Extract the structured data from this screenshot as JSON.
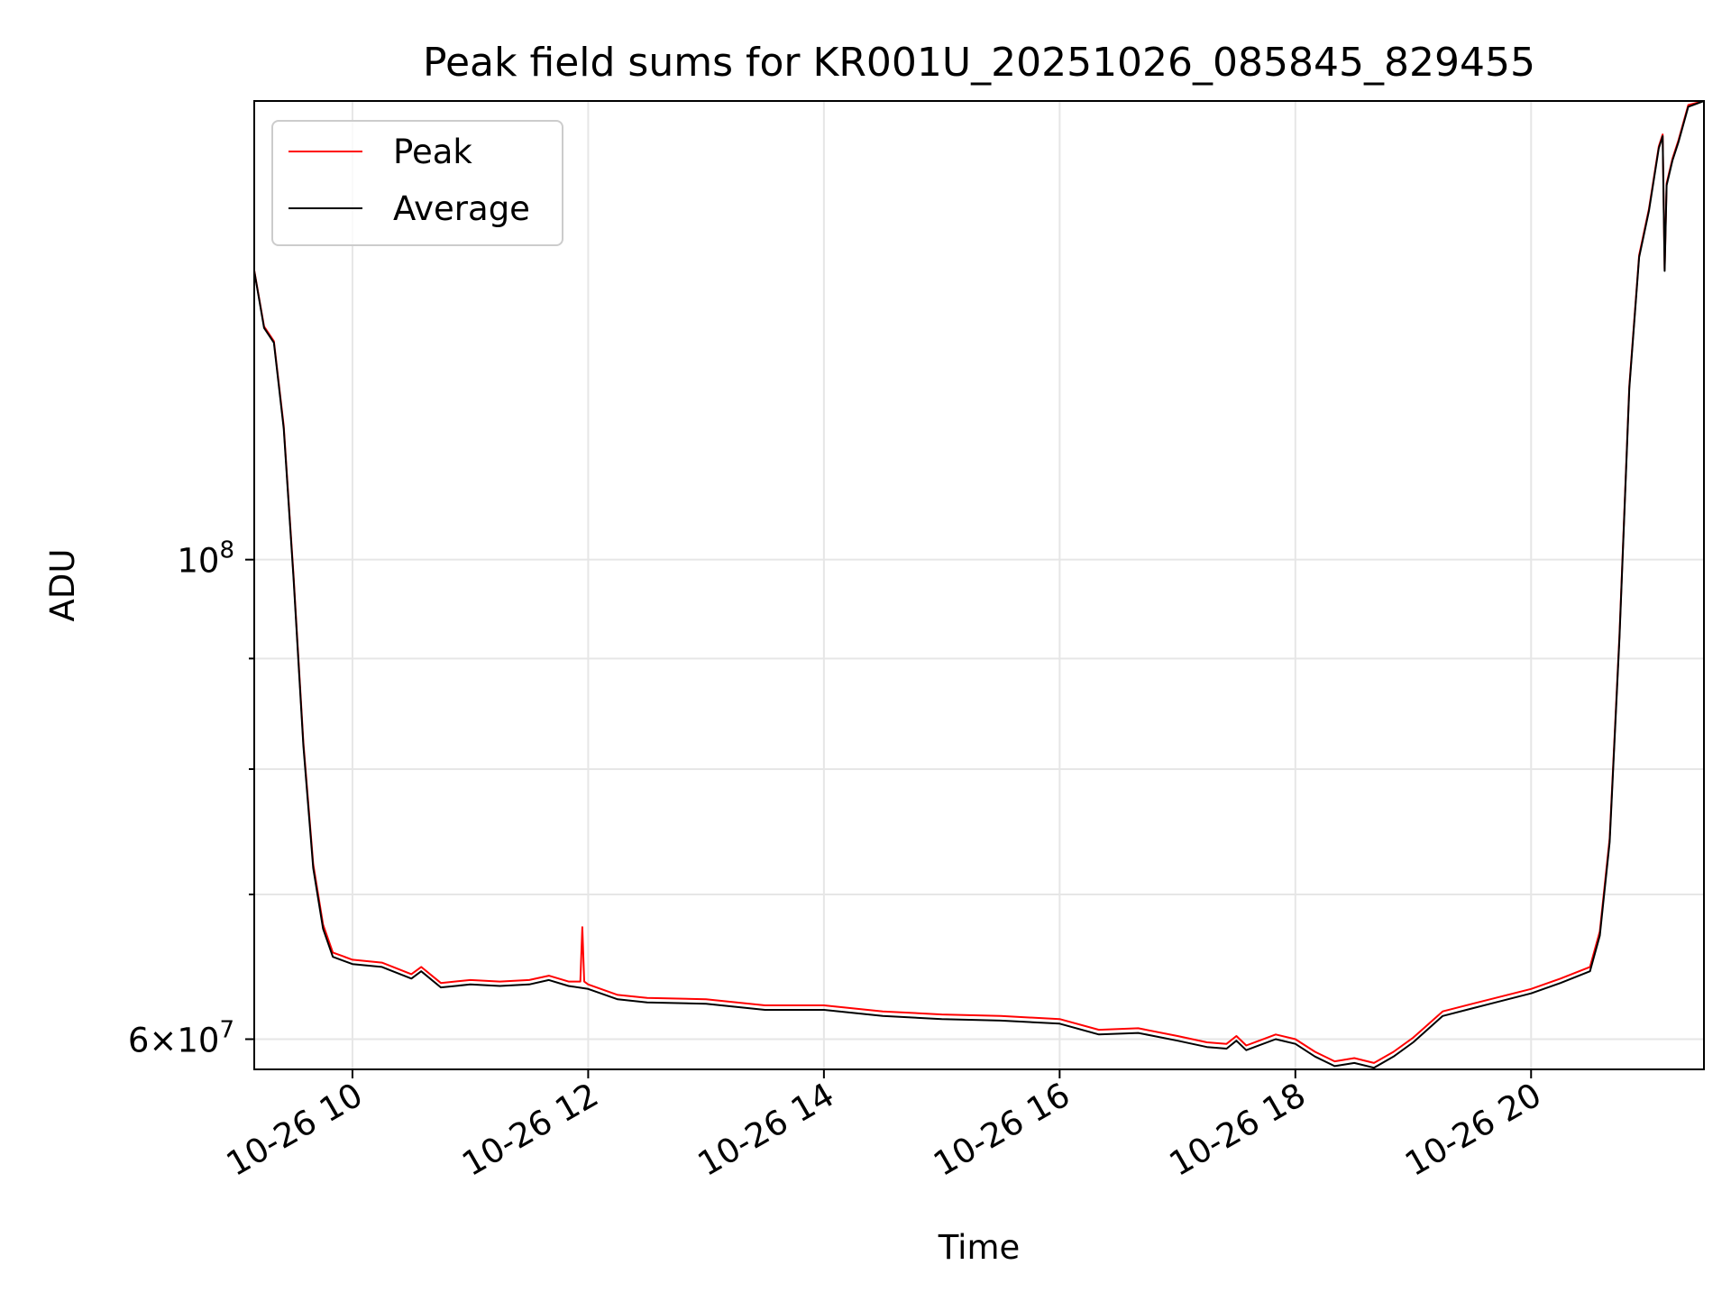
{
  "chart_data": {
    "type": "line",
    "title": "Peak field sums for KR001U_20251026_085845_829455",
    "xlabel": "Time",
    "ylabel": "ADU",
    "y_scale": "log",
    "x_range": [
      "2025-10-26 09:10",
      "2025-10-26 21:28"
    ],
    "ylim": [
      58100000,
      163000000
    ],
    "grid": true,
    "legend_position": "top-left",
    "x_ticks": [
      "10-26 10",
      "10-26 12",
      "10-26 14",
      "10-26 16",
      "10-26 18",
      "10-26 20"
    ],
    "y_ticks": [
      {
        "value": 100000000,
        "label_base": "10",
        "label_exp": "8",
        "mantissa": ""
      },
      {
        "value": 60000000,
        "label_base": "10",
        "label_exp": "7",
        "mantissa": "6"
      }
    ],
    "colors": {
      "peak": "#ff0000",
      "average": "#000000",
      "grid": "#e6e6e6"
    },
    "series": [
      {
        "name": "Average",
        "color": "#000000",
        "points": [
          [
            "2025-10-26 09:10",
            136000000
          ],
          [
            "2025-10-26 09:15",
            128000000
          ],
          [
            "2025-10-26 09:20",
            126000000
          ],
          [
            "2025-10-26 09:25",
            115000000
          ],
          [
            "2025-10-26 09:30",
            98000000
          ],
          [
            "2025-10-26 09:35",
            82000000
          ],
          [
            "2025-10-26 09:40",
            72000000
          ],
          [
            "2025-10-26 09:45",
            67500000
          ],
          [
            "2025-10-26 09:50",
            65500000
          ],
          [
            "2025-10-26 10:00",
            65000000
          ],
          [
            "2025-10-26 10:15",
            64800000
          ],
          [
            "2025-10-26 10:30",
            64000000
          ],
          [
            "2025-10-26 10:35",
            64500000
          ],
          [
            "2025-10-26 10:45",
            63400000
          ],
          [
            "2025-10-26 11:00",
            63600000
          ],
          [
            "2025-10-26 11:15",
            63500000
          ],
          [
            "2025-10-26 11:30",
            63600000
          ],
          [
            "2025-10-26 11:40",
            63900000
          ],
          [
            "2025-10-26 11:50",
            63500000
          ],
          [
            "2025-10-26 12:00",
            63300000
          ],
          [
            "2025-10-26 12:15",
            62600000
          ],
          [
            "2025-10-26 12:30",
            62400000
          ],
          [
            "2025-10-26 13:00",
            62300000
          ],
          [
            "2025-10-26 13:30",
            61900000
          ],
          [
            "2025-10-26 14:00",
            61900000
          ],
          [
            "2025-10-26 14:30",
            61500000
          ],
          [
            "2025-10-26 15:00",
            61300000
          ],
          [
            "2025-10-26 15:30",
            61200000
          ],
          [
            "2025-10-26 16:00",
            61000000
          ],
          [
            "2025-10-26 16:20",
            60300000
          ],
          [
            "2025-10-26 16:40",
            60400000
          ],
          [
            "2025-10-26 17:00",
            59900000
          ],
          [
            "2025-10-26 17:15",
            59500000
          ],
          [
            "2025-10-26 17:25",
            59400000
          ],
          [
            "2025-10-26 17:30",
            59900000
          ],
          [
            "2025-10-26 17:35",
            59300000
          ],
          [
            "2025-10-26 17:50",
            60000000
          ],
          [
            "2025-10-26 18:00",
            59700000
          ],
          [
            "2025-10-26 18:10",
            58900000
          ],
          [
            "2025-10-26 18:20",
            58300000
          ],
          [
            "2025-10-26 18:30",
            58500000
          ],
          [
            "2025-10-26 18:40",
            58200000
          ],
          [
            "2025-10-26 18:50",
            58900000
          ],
          [
            "2025-10-26 19:00",
            59800000
          ],
          [
            "2025-10-26 19:15",
            61500000
          ],
          [
            "2025-10-26 19:30",
            62000000
          ],
          [
            "2025-10-26 20:00",
            63000000
          ],
          [
            "2025-10-26 20:15",
            63700000
          ],
          [
            "2025-10-26 20:30",
            64500000
          ],
          [
            "2025-10-26 20:35",
            67000000
          ],
          [
            "2025-10-26 20:40",
            74000000
          ],
          [
            "2025-10-26 20:45",
            92000000
          ],
          [
            "2025-10-26 20:50",
            120000000
          ],
          [
            "2025-10-26 20:55",
            138000000
          ],
          [
            "2025-10-26 21:00",
            145000000
          ],
          [
            "2025-10-26 21:05",
            155000000
          ],
          [
            "2025-10-26 21:07",
            157000000
          ],
          [
            "2025-10-26 21:08",
            136000000
          ],
          [
            "2025-10-26 21:09",
            149000000
          ],
          [
            "2025-10-26 21:12",
            153000000
          ],
          [
            "2025-10-26 21:15",
            156000000
          ],
          [
            "2025-10-26 21:20",
            162000000
          ],
          [
            "2025-10-26 21:28",
            163000000
          ]
        ]
      },
      {
        "name": "Peak",
        "color": "#ff0000",
        "points": [
          [
            "2025-10-26 09:10",
            136100000
          ],
          [
            "2025-10-26 09:15",
            128200000
          ],
          [
            "2025-10-26 09:20",
            126200000
          ],
          [
            "2025-10-26 09:25",
            115300000
          ],
          [
            "2025-10-26 09:30",
            98300000
          ],
          [
            "2025-10-26 09:35",
            82300000
          ],
          [
            "2025-10-26 09:40",
            72300000
          ],
          [
            "2025-10-26 09:45",
            67800000
          ],
          [
            "2025-10-26 09:50",
            65800000
          ],
          [
            "2025-10-26 10:00",
            65300000
          ],
          [
            "2025-10-26 10:15",
            65100000
          ],
          [
            "2025-10-26 10:30",
            64300000
          ],
          [
            "2025-10-26 10:35",
            64800000
          ],
          [
            "2025-10-26 10:45",
            63700000
          ],
          [
            "2025-10-26 11:00",
            63900000
          ],
          [
            "2025-10-26 11:15",
            63800000
          ],
          [
            "2025-10-26 11:30",
            63900000
          ],
          [
            "2025-10-26 11:40",
            64200000
          ],
          [
            "2025-10-26 11:50",
            63800000
          ],
          [
            "2025-10-26 11:56",
            63800000
          ],
          [
            "2025-10-26 11:57",
            67600000
          ],
          [
            "2025-10-26 11:58",
            63800000
          ],
          [
            "2025-10-26 12:00",
            63600000
          ],
          [
            "2025-10-26 12:15",
            62900000
          ],
          [
            "2025-10-26 12:30",
            62700000
          ],
          [
            "2025-10-26 13:00",
            62600000
          ],
          [
            "2025-10-26 13:30",
            62200000
          ],
          [
            "2025-10-26 14:00",
            62200000
          ],
          [
            "2025-10-26 14:30",
            61800000
          ],
          [
            "2025-10-26 15:00",
            61600000
          ],
          [
            "2025-10-26 15:30",
            61500000
          ],
          [
            "2025-10-26 16:00",
            61300000
          ],
          [
            "2025-10-26 16:20",
            60600000
          ],
          [
            "2025-10-26 16:40",
            60700000
          ],
          [
            "2025-10-26 17:00",
            60200000
          ],
          [
            "2025-10-26 17:15",
            59800000
          ],
          [
            "2025-10-26 17:25",
            59700000
          ],
          [
            "2025-10-26 17:30",
            60200000
          ],
          [
            "2025-10-26 17:35",
            59600000
          ],
          [
            "2025-10-26 17:50",
            60300000
          ],
          [
            "2025-10-26 18:00",
            60000000
          ],
          [
            "2025-10-26 18:10",
            59200000
          ],
          [
            "2025-10-26 18:20",
            58600000
          ],
          [
            "2025-10-26 18:30",
            58800000
          ],
          [
            "2025-10-26 18:40",
            58500000
          ],
          [
            "2025-10-26 18:50",
            59200000
          ],
          [
            "2025-10-26 19:00",
            60100000
          ],
          [
            "2025-10-26 19:15",
            61800000
          ],
          [
            "2025-10-26 19:30",
            62300000
          ],
          [
            "2025-10-26 20:00",
            63300000
          ],
          [
            "2025-10-26 20:15",
            64000000
          ],
          [
            "2025-10-26 20:30",
            64800000
          ],
          [
            "2025-10-26 20:35",
            67300000
          ],
          [
            "2025-10-26 20:40",
            74300000
          ],
          [
            "2025-10-26 20:45",
            92300000
          ],
          [
            "2025-10-26 20:50",
            120300000
          ],
          [
            "2025-10-26 20:55",
            138300000
          ],
          [
            "2025-10-26 21:00",
            145300000
          ],
          [
            "2025-10-26 21:05",
            155300000
          ],
          [
            "2025-10-26 21:07",
            157300000
          ],
          [
            "2025-10-26 21:08",
            136300000
          ],
          [
            "2025-10-26 21:09",
            149300000
          ],
          [
            "2025-10-26 21:12",
            153300000
          ],
          [
            "2025-10-26 21:15",
            156300000
          ],
          [
            "2025-10-26 21:20",
            162300000
          ],
          [
            "2025-10-26 21:28",
            163000000
          ]
        ]
      }
    ]
  }
}
